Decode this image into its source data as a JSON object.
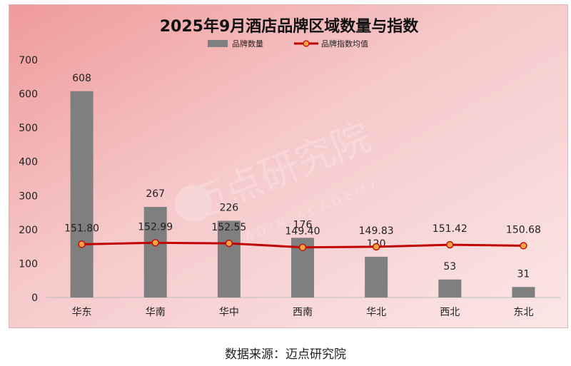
{
  "chart_data": {
    "type": "bar",
    "title": "2025年9月酒店品牌区域数量与指数",
    "categories": [
      "华东",
      "华南",
      "华中",
      "西南",
      "华北",
      "西北",
      "东北"
    ],
    "series": [
      {
        "name": "品牌数量",
        "type": "bar",
        "values": [
          608,
          267,
          226,
          176,
          120,
          53,
          31
        ],
        "color": "#7f7f7f"
      },
      {
        "name": "品牌指数均值",
        "type": "line",
        "values": [
          151.8,
          152.99,
          152.55,
          149.4,
          149.83,
          151.42,
          150.68
        ],
        "color": "#c00000",
        "marker_color": "#f4a340"
      }
    ],
    "value_labels_line": [
      "151.80",
      "152.99",
      "152.55",
      "149.40",
      "149.83",
      "151.42",
      "150.68"
    ],
    "yticks": [
      0,
      100,
      200,
      300,
      400,
      500,
      600,
      700
    ],
    "ylim": [
      0,
      700
    ],
    "xlabel": "",
    "ylabel": "",
    "legend_position": "top-center",
    "grid": false,
    "background": "pink-gradient"
  },
  "watermark": {
    "text": "迈点研究院",
    "subtext": "MEADIN ACADEMY"
  },
  "source": "数据来源：迈点研究院"
}
